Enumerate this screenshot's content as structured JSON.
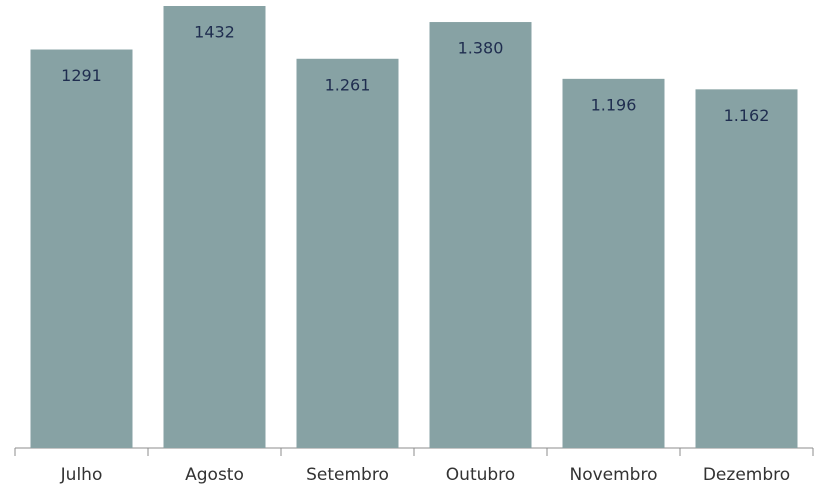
{
  "chart_data": {
    "type": "bar",
    "categories": [
      "Julho",
      "Agosto",
      "Setembro",
      "Outubro",
      "Novembro",
      "Dezembro"
    ],
    "values": [
      1291,
      1432,
      1261,
      1380,
      1196,
      1162
    ],
    "value_labels": [
      "1291",
      "1432",
      "1.261",
      "1.380",
      "1.196",
      "1.162"
    ],
    "color": "#87a2a4",
    "grid": false
  }
}
